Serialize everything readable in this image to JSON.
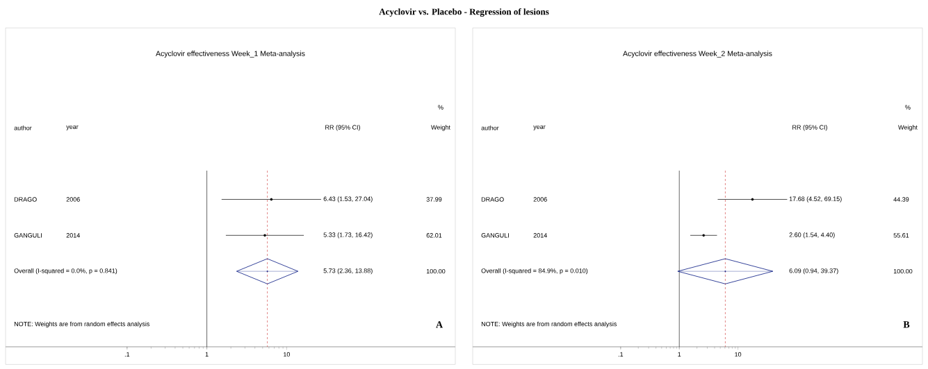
{
  "chart_data": [
    {
      "type": "scatter",
      "title": "Acyclovir vs. Placebo - Regression of lesions",
      "subtitle": "Acyclovir effectiveness Week_1 Meta-analysis",
      "orientation": "horizontal",
      "log": "x",
      "categories": [
        "DRAGO",
        "GANGULI",
        "Overall  (I-squared = 0.0%, p = 0.841)"
      ],
      "series": [
        {
          "color": "#000000",
          "marker": "circle",
          "values": [
            6.43,
            5.33,
            null
          ],
          "errors": [
            [
              1.53,
              27.04
            ],
            [
              1.73,
              16.42
            ],
            null
          ]
        },
        {
          "color": "#1f2f8f",
          "marker": "diamond",
          "values": [
            null,
            null,
            5.73
          ],
          "errors": [
            null,
            null,
            [
              2.36,
              13.88
            ]
          ]
        }
      ],
      "xlim": [
        0.003,
        1300
      ],
      "xticks": [
        {
          "value": 0.1,
          "label": ".1"
        },
        1,
        10
      ],
      "ref_lines": [
        {
          "axis": "x",
          "value": 1,
          "color": "#000000",
          "line_style": "solid"
        },
        {
          "axis": "x",
          "value": 5.73,
          "color": "#cc3333",
          "line_style": "dashed"
        }
      ],
      "annotations": [
        "author",
        "year",
        "RR (95% CI)",
        "%",
        "Weight",
        "2006",
        "2014",
        "37.99",
        "62.01",
        "100.00",
        "NOTE: Weights are from random effects analysis",
        "A",
        "6.43 (1.53, 27.04)",
        "5.33 (1.73, 16.42)",
        "5.73 (2.36, 13.88)"
      ]
    },
    {
      "type": "scatter",
      "subtitle": "Acyclovir effectiveness Week_2 Meta-analysis",
      "orientation": "horizontal",
      "log": "x",
      "categories": [
        "DRAGO",
        "GANGULI",
        "Overall  (I-squared = 84.9%, p = 0.010)"
      ],
      "series": [
        {
          "color": "#000000",
          "marker": "circle",
          "values": [
            17.68,
            2.6,
            null
          ],
          "errors": [
            [
              4.52,
              69.15
            ],
            [
              1.54,
              4.4
            ],
            null
          ]
        },
        {
          "color": "#1f2f8f",
          "marker": "diamond",
          "values": [
            null,
            null,
            6.09
          ],
          "errors": [
            null,
            null,
            [
              0.94,
              39.37
            ]
          ]
        }
      ],
      "xlim": [
        0.0003,
        14000
      ],
      "xticks": [
        {
          "value": 0.1,
          "label": ".1"
        },
        1,
        10
      ],
      "ref_lines": [
        {
          "axis": "x",
          "value": 1,
          "color": "#000000",
          "line_style": "solid"
        },
        {
          "axis": "x",
          "value": 6.09,
          "color": "#cc3333",
          "line_style": "dashed"
        }
      ],
      "annotations": [
        "author",
        "year",
        "RR (95% CI)",
        "%",
        "Weight",
        "2006",
        "2014",
        "44.39",
        "55.61",
        "100.00",
        "NOTE: Weights are from random effects analysis",
        "B",
        "17.68 (4.52, 69.15)",
        "2.60 (1.54, 4.40)",
        "6.09 (0.94, 39.37)"
      ]
    }
  ]
}
